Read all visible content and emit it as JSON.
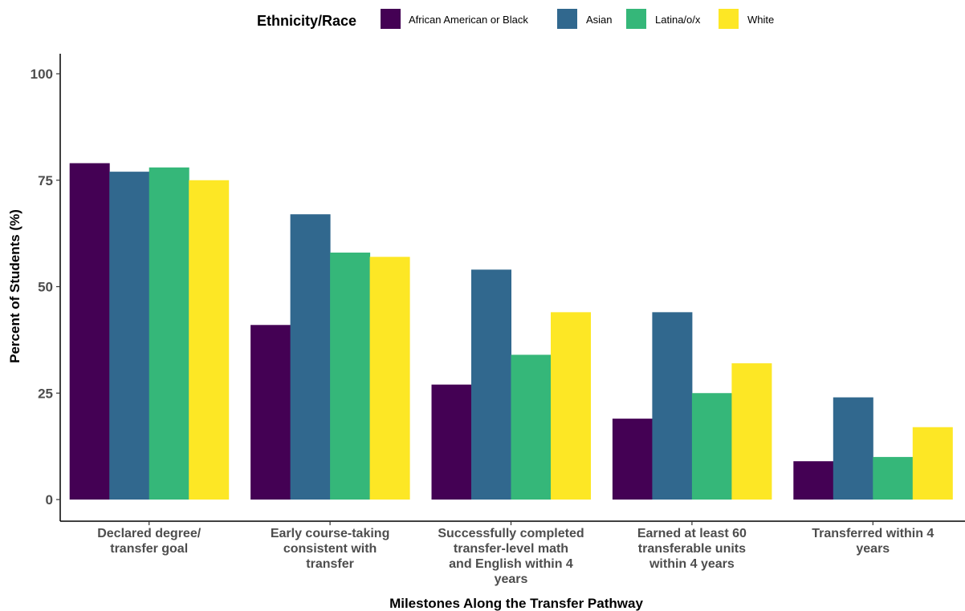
{
  "chart_data": {
    "type": "bar",
    "title": "",
    "xlabel": "Milestones Along the Transfer Pathway",
    "ylabel": "Percent of Students (%)",
    "ylim": [
      0,
      105
    ],
    "yticks": [
      0,
      25,
      50,
      75,
      100
    ],
    "grid": false,
    "legend": {
      "title": "Ethnicity/Race",
      "placement": "top"
    },
    "categories": [
      [
        "Declared degree/",
        "transfer goal"
      ],
      [
        "Early course-taking",
        "consistent with",
        "transfer"
      ],
      [
        "Successfully completed",
        "transfer-level math",
        "and English within 4",
        "years"
      ],
      [
        "Earned at least 60",
        "transferable units",
        "within 4 years"
      ],
      [
        "Transferred within 4",
        "years"
      ]
    ],
    "series": [
      {
        "name": "African American or Black",
        "color": "#440154",
        "values": [
          79,
          41,
          27,
          19,
          9
        ]
      },
      {
        "name": "Asian",
        "color": "#31688e",
        "values": [
          77,
          67,
          54,
          44,
          24
        ]
      },
      {
        "name": "Latina/o/x",
        "color": "#35b779",
        "values": [
          78,
          58,
          34,
          25,
          10
        ]
      },
      {
        "name": "White",
        "color": "#fde725",
        "values": [
          75,
          57,
          44,
          32,
          17
        ]
      }
    ]
  }
}
